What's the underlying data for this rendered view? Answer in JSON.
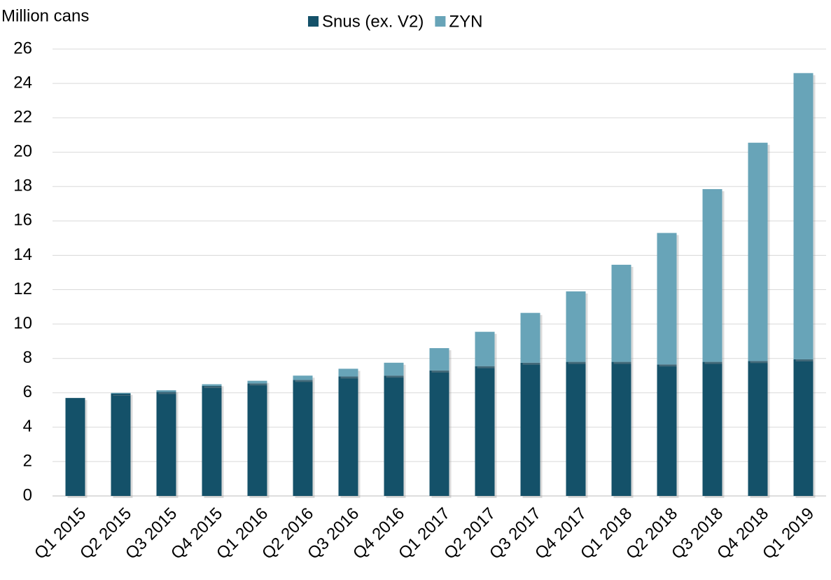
{
  "chart_data": {
    "type": "stacked_bar",
    "y_axis_label": "Million cans",
    "categories": [
      "Q1 2015",
      "Q2 2015",
      "Q3 2015",
      "Q4 2015",
      "Q1 2016",
      "Q2 2016",
      "Q3 2016",
      "Q4 2016",
      "Q1 2017",
      "Q2 2017",
      "Q3 2017",
      "Q4 2017",
      "Q1 2018",
      "Q2 2018",
      "Q3 2018",
      "Q4 2018",
      "Q1 2019"
    ],
    "series": [
      {
        "name": "Snus (ex. V2)",
        "color": "#145169",
        "values": [
          5.7,
          5.95,
          6.05,
          6.4,
          6.55,
          6.75,
          6.95,
          7.0,
          7.3,
          7.55,
          7.75,
          7.8,
          7.8,
          7.65,
          7.8,
          7.85,
          7.95
        ]
      },
      {
        "name": "ZYN",
        "color": "#68a4b8",
        "values": [
          0,
          0.05,
          0.1,
          0.1,
          0.15,
          0.25,
          0.45,
          0.75,
          1.3,
          2.0,
          2.9,
          4.1,
          5.65,
          7.65,
          10.05,
          12.7,
          16.65
        ]
      }
    ],
    "ylim": [
      0,
      26
    ],
    "yticks": [
      0,
      2,
      4,
      6,
      8,
      10,
      12,
      14,
      16,
      18,
      20,
      22,
      24,
      26
    ],
    "grid": true,
    "legend": "top"
  }
}
